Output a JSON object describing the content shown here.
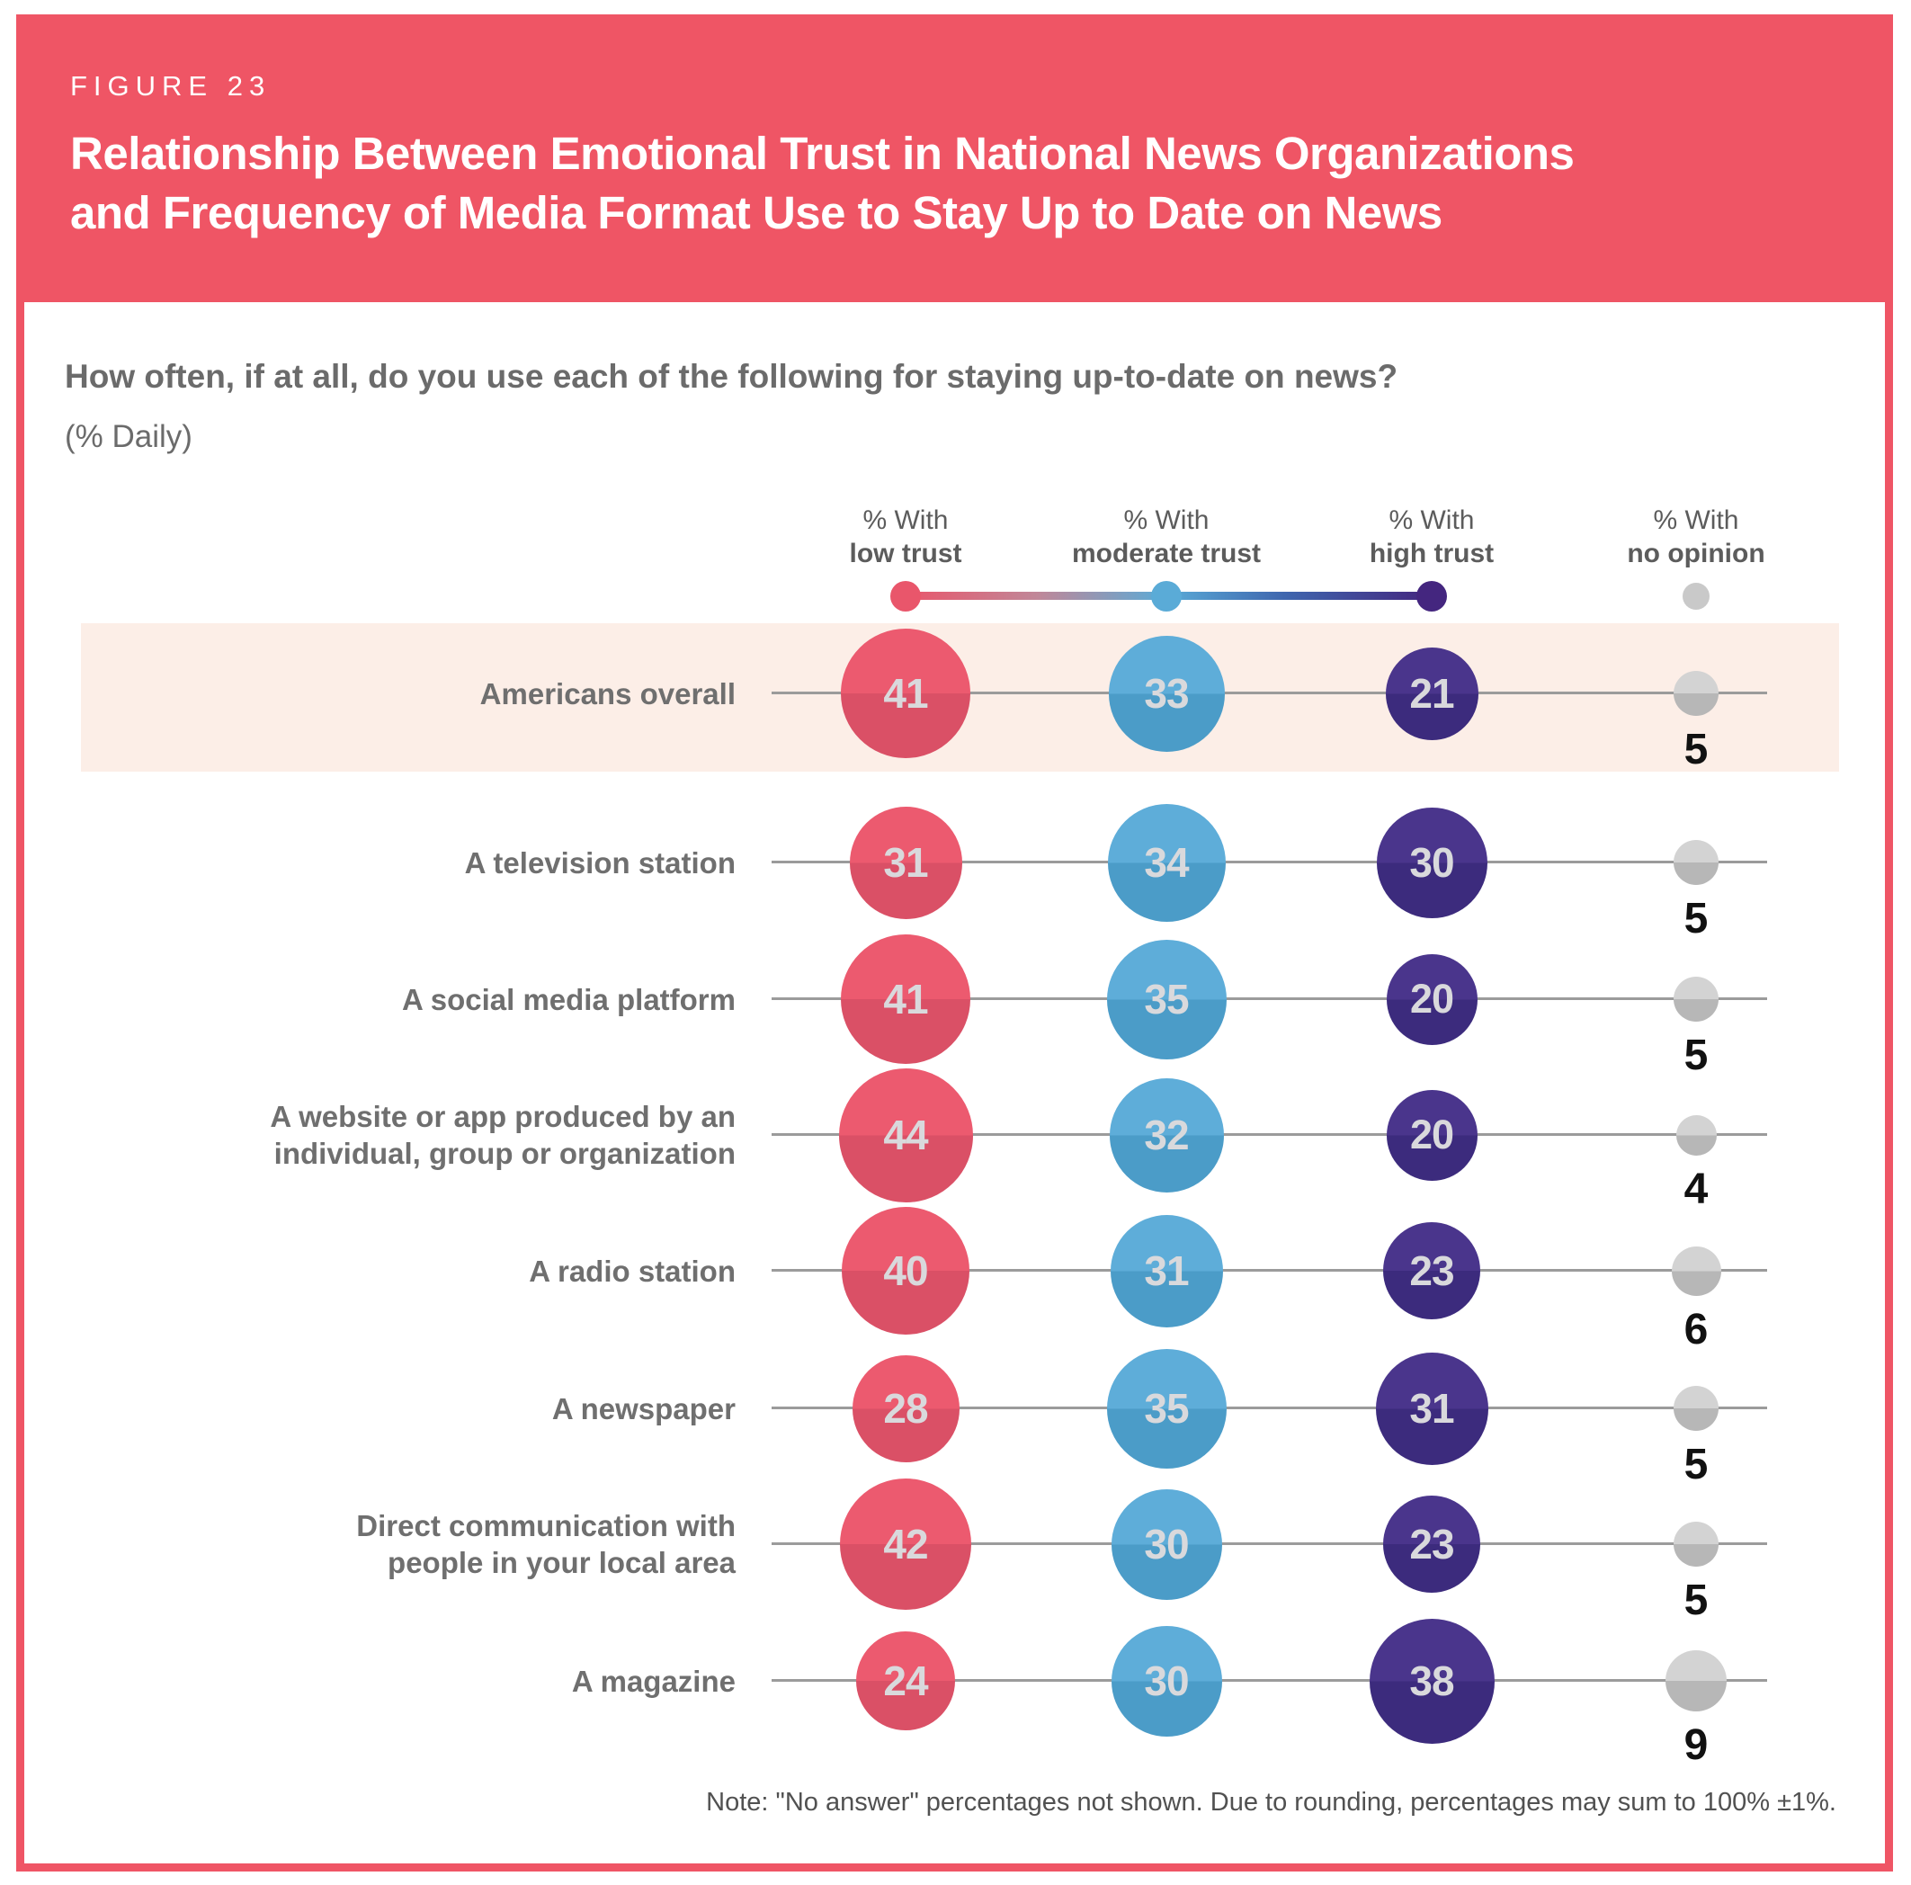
{
  "figure": {
    "eyebrow": "FIGURE 23",
    "title_line1": "Relationship Between Emotional Trust in National News Organizations",
    "title_line2": "and Frequency of Media Format Use to Stay Up to Date on News",
    "question": "How often, if at all, do you use each of the following for staying up-to-date on news?",
    "unit": "(% Daily)",
    "note": "Note: \"No answer\" percentages not shown. Due to rounding, percentages may sum to 100% ±1%."
  },
  "colors": {
    "banner_red": "#ef5565",
    "frame_red": "#ef5565",
    "highlight_bg": "#fceee7",
    "gridline": "#9b9b9b",
    "bubble_number": "#d9d9dc",
    "no_opinion_number": "#111111",
    "low_top": "#ec5a6f",
    "low_bottom": "#da5066",
    "moderate_top": "#5eadd9",
    "moderate_bottom": "#4b9cc8",
    "high_top": "#4a358c",
    "high_bottom": "#3c2b7d",
    "no_opinion_top": "#d3d3d3",
    "no_opinion_bottom": "#b7b7b7",
    "legend_low": "#e9566b",
    "legend_moderate": "#5aabd7",
    "legend_high": "#44267f",
    "legend_no_opinion": "#c9c9c9"
  },
  "chart_data": {
    "type": "bubble",
    "unit": "% Daily",
    "legend_position": "top",
    "columns": [
      {
        "key": "low",
        "header_top": "% With",
        "header_bottom": "low trust"
      },
      {
        "key": "moderate",
        "header_top": "% With",
        "header_bottom": "moderate trust"
      },
      {
        "key": "high",
        "header_top": "% With",
        "header_bottom": "high trust"
      },
      {
        "key": "no_opinion",
        "header_top": "% With",
        "header_bottom": "no opinion"
      }
    ],
    "rows": [
      {
        "label": "Americans overall",
        "label_lines": [
          "Americans overall"
        ],
        "highlight": true,
        "low": 41,
        "moderate": 33,
        "high": 21,
        "no_opinion": 5
      },
      {
        "label": "A television station",
        "label_lines": [
          "A television station"
        ],
        "highlight": false,
        "low": 31,
        "moderate": 34,
        "high": 30,
        "no_opinion": 5
      },
      {
        "label": "A social media platform",
        "label_lines": [
          "A social media platform"
        ],
        "highlight": false,
        "low": 41,
        "moderate": 35,
        "high": 20,
        "no_opinion": 5
      },
      {
        "label": "A website or app produced by an individual, group or organization",
        "label_lines": [
          "A website or app produced by an",
          "individual, group or organization"
        ],
        "highlight": false,
        "low": 44,
        "moderate": 32,
        "high": 20,
        "no_opinion": 4
      },
      {
        "label": "A radio station",
        "label_lines": [
          "A radio station"
        ],
        "highlight": false,
        "low": 40,
        "moderate": 31,
        "high": 23,
        "no_opinion": 6
      },
      {
        "label": "A newspaper",
        "label_lines": [
          "A newspaper"
        ],
        "highlight": false,
        "low": 28,
        "moderate": 35,
        "high": 31,
        "no_opinion": 5
      },
      {
        "label": "Direct communication with people in your local area",
        "label_lines": [
          "Direct communication with",
          "people in your local area"
        ],
        "highlight": false,
        "low": 42,
        "moderate": 30,
        "high": 23,
        "no_opinion": 5
      },
      {
        "label": "A magazine",
        "label_lines": [
          "A magazine"
        ],
        "highlight": false,
        "low": 24,
        "moderate": 30,
        "high": 38,
        "no_opinion": 9
      }
    ]
  }
}
